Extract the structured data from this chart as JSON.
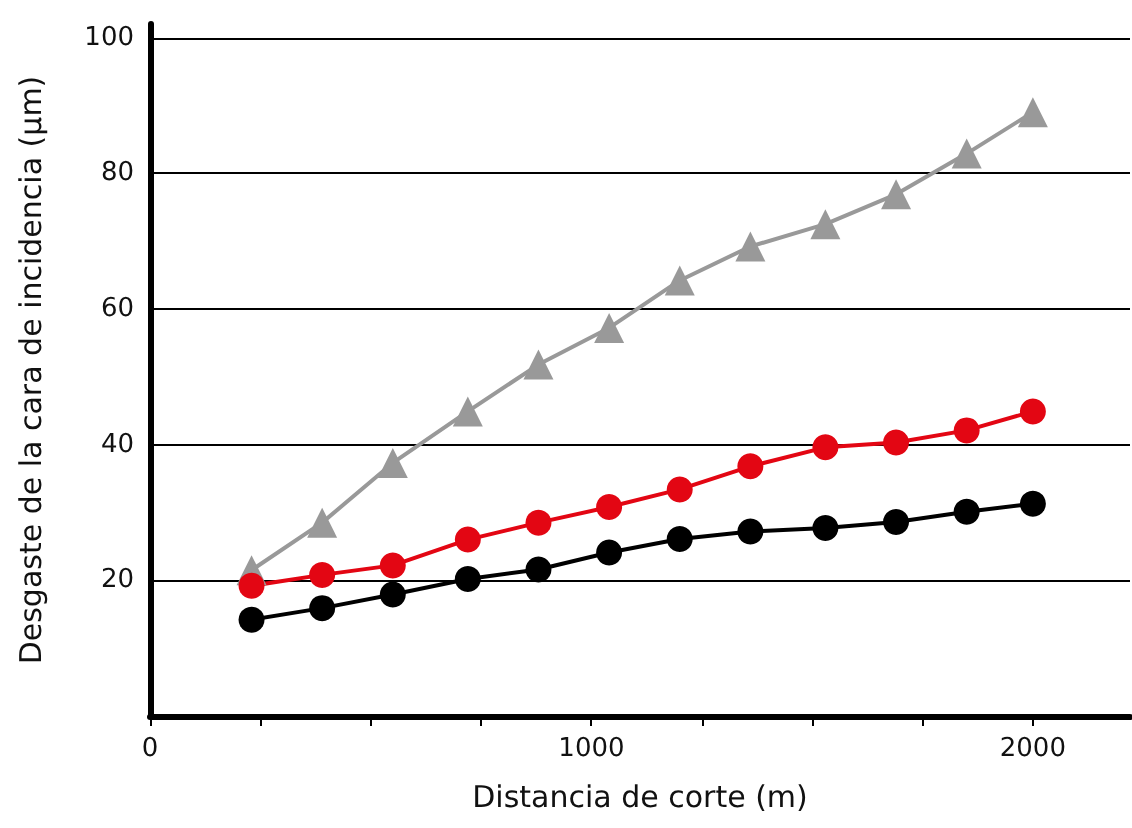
{
  "chart_data": {
    "type": "line",
    "xlabel": "Distancia de corte (m)",
    "ylabel": "Desgaste de la cara de incidencia (µm)",
    "x": [
      230,
      390,
      550,
      720,
      880,
      1040,
      1200,
      1360,
      1530,
      1690,
      1850,
      2000
    ],
    "series": [
      {
        "color": "#999999",
        "marker": "triangle",
        "values": [
          21.5,
          28.5,
          37.3,
          44.9,
          51.8,
          57.2,
          64.2,
          69.2,
          72.5,
          76.9,
          82.9,
          89.0
        ]
      },
      {
        "color": "#e30613",
        "marker": "circle",
        "values": [
          19.2,
          20.8,
          22.2,
          26.0,
          28.5,
          30.8,
          33.4,
          36.8,
          39.6,
          40.3,
          42.1,
          44.9
        ]
      },
      {
        "color": "#000000",
        "marker": "circle",
        "values": [
          14.2,
          15.9,
          17.9,
          20.2,
          21.6,
          24.1,
          26.1,
          27.2,
          27.7,
          28.6,
          30.1,
          31.3
        ]
      }
    ],
    "xlim": [
      0,
      2220
    ],
    "xticks": [
      0,
      {
        "value": 250,
        "label": null
      },
      {
        "value": 500,
        "label": null
      },
      {
        "value": 750,
        "label": null
      },
      1000,
      {
        "value": 1250,
        "label": null
      },
      {
        "value": 1500,
        "label": null
      },
      {
        "value": 1750,
        "label": null
      },
      2000
    ],
    "ylim": [
      0,
      102
    ],
    "yticks": [
      20,
      40,
      60,
      80,
      100
    ],
    "grid": "y",
    "line_style": "solid"
  }
}
